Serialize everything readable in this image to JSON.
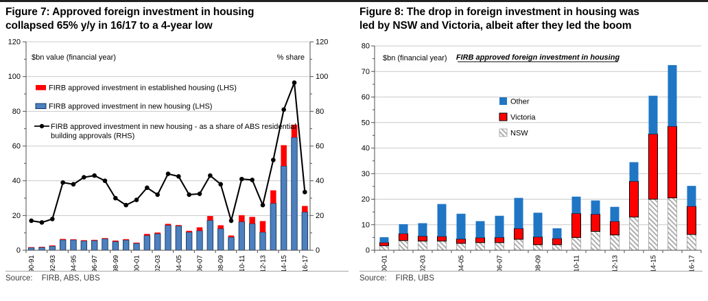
{
  "style": {
    "top_rule_color": "#222222",
    "grid_color": "#c8c8c8",
    "axis_color": "#4d4d4d",
    "source_separator_color": "#a3a3a3"
  },
  "figures": [
    {
      "title_lines": [
        "Figure 7: Approved foreign investment in housing",
        "collapsed 65% y/y in 16/17 to a 4-year low"
      ],
      "source_label": "Source:",
      "source": "FIRB, ABS, UBS"
    },
    {
      "title_lines": [
        "Figure 8: The drop in foreign investment in housing was",
        "led by NSW and Victoria, albeit after they led the boom"
      ],
      "source_label": "Source:",
      "source": "FIRB, UBS"
    }
  ],
  "chart_data": [
    {
      "type": "bar",
      "subtype": "stacked-bars-with-line",
      "title": "Figure 7: Approved foreign investment in housing collapsed 65% y/y in 16/17 to a 4-year low",
      "left_axis_caption": "$bn value (financial year)",
      "right_axis_caption": "% share",
      "ylim_left": [
        0,
        120
      ],
      "ylim_right": [
        0,
        120
      ],
      "ytick_step": 20,
      "ytick_minor_step": 10,
      "grid": true,
      "legend_position": "upper-left-inside",
      "xtick_label_every": 2,
      "categories": [
        "90-91",
        "91-92",
        "92-93",
        "93-94",
        "94-95",
        "95-96",
        "96-97",
        "97-98",
        "98-99",
        "99-00",
        "00-01",
        "01-02",
        "02-03",
        "03-04",
        "04-05",
        "05-06",
        "06-07",
        "07-08",
        "08-09",
        "09-10",
        "10-11",
        "11-12",
        "12-13",
        "13-14",
        "14-15",
        "15-16",
        "16-17"
      ],
      "series": [
        {
          "name": "FIRB approved investment in established housing (LHS)",
          "type": "bar",
          "stack_position": "top",
          "axis": "left",
          "color": "#ff0000",
          "values": [
            0.3,
            0.3,
            0.4,
            0.5,
            0.3,
            0.4,
            0.4,
            0.4,
            0.6,
            0.5,
            0.4,
            0.9,
            0.7,
            0.8,
            0.5,
            0.8,
            2.0,
            2.5,
            2.0,
            1.0,
            3.8,
            3.9,
            6.4,
            7.5,
            12.0,
            7.3,
            3.5
          ]
        },
        {
          "name": "FIRB approved investment in new housing (LHS)",
          "type": "bar",
          "stack_position": "bottom",
          "axis": "left",
          "color": "#4c80be",
          "border_color": "#17375d",
          "values": [
            1.5,
            1.7,
            2.4,
            6.0,
            6.0,
            5.4,
            5.6,
            6.6,
            5.0,
            5.9,
            4.0,
            8.5,
            9.5,
            14.4,
            14.0,
            10.4,
            11.2,
            17.2,
            12.4,
            7.5,
            16.4,
            15.3,
            10.4,
            27.0,
            48.5,
            65.0,
            22.0
          ]
        },
        {
          "name": "FIRB approved investment in new housing - as a share of ABS residential building approvals (RHS)",
          "type": "line",
          "axis": "right",
          "color": "#000000",
          "marker": "circle",
          "values": [
            17,
            16,
            18,
            39,
            38,
            42,
            43,
            40,
            30,
            26,
            29,
            36,
            32,
            44,
            42.5,
            32,
            32.5,
            43,
            38,
            17,
            41,
            40.5,
            26,
            52,
            81,
            96.5,
            33.5
          ]
        }
      ]
    },
    {
      "type": "bar",
      "subtype": "stacked-bars",
      "title": "Figure 8: The drop in foreign investment in housing was led by NSW and Victoria, albeit after they led the boom",
      "inner_title": "FIRB approved foreign investment in housing",
      "left_axis_caption": "$bn (financial year)",
      "ylim": [
        0,
        80
      ],
      "ytick_step": 10,
      "ytick_minor_step": 5,
      "grid": true,
      "legend_position": "center-upper-inside",
      "xtick_label_every": 2,
      "categories": [
        "00-01",
        "01-02",
        "02-03",
        "03-04",
        "04-05",
        "05-06",
        "06-07",
        "07-08",
        "08-09",
        "09-10",
        "10-11",
        "11-12",
        "12-13",
        "13-14",
        "14-15",
        "15-16",
        "16-17"
      ],
      "series": [
        {
          "name": "Other",
          "stack_order": 3,
          "color": "#1f76c4",
          "values": [
            2.1,
            3.7,
            5.1,
            12.7,
            9.9,
            6.5,
            8.5,
            12.0,
            9.5,
            4.0,
            6.6,
            5.4,
            5.7,
            7.5,
            15.0,
            24.0,
            8.0
          ]
        },
        {
          "name": "Victoria",
          "stack_order": 2,
          "color": "#ff0000",
          "border_color": "#000000",
          "values": [
            1.2,
            2.7,
            1.9,
            1.8,
            1.7,
            1.9,
            2.0,
            4.2,
            3.0,
            2.4,
            9.4,
            6.7,
            5.3,
            14.0,
            25.5,
            28.0,
            11.0
          ]
        },
        {
          "name": "NSW",
          "stack_order": 1,
          "color": "#ffffff",
          "pattern": "diagonal-hatch",
          "hatch_color": "#adadad",
          "border_color": "#9a9a9a",
          "values": [
            1.8,
            3.8,
            3.6,
            3.6,
            2.7,
            3.0,
            3.0,
            4.3,
            2.2,
            2.2,
            5.0,
            7.4,
            6.0,
            13.0,
            20.0,
            20.5,
            6.2
          ]
        }
      ]
    }
  ]
}
